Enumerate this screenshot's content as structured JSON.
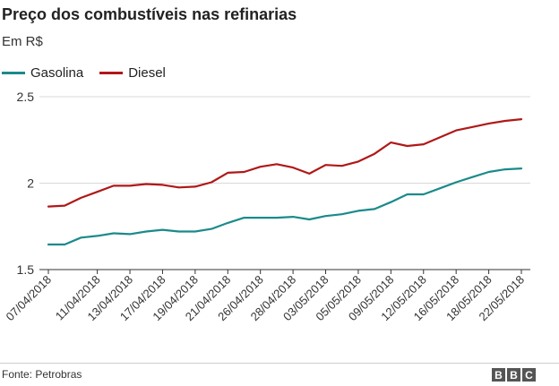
{
  "header": {
    "title": "Preço dos combustíveis nas refinarias",
    "subtitle": "Em R$"
  },
  "footer": {
    "source": "Fonte: Petrobras",
    "logo": [
      "B",
      "B",
      "C"
    ]
  },
  "colors": {
    "gasolina": "#1b8a8a",
    "diesel": "#b01818",
    "grid": "#d9d9d9",
    "axis": "#333333"
  },
  "chart_data": {
    "type": "line",
    "title": "Preço dos combustíveis nas refinarias",
    "ylabel": "Em R$",
    "xlabel": "",
    "ylim": [
      1.5,
      2.5
    ],
    "yticks": [
      1.5,
      2,
      2.5
    ],
    "grid": true,
    "legend": "top-left",
    "x": [
      "07/04/2018",
      "09/04/2018",
      "10/04/2018",
      "11/04/2018",
      "12/04/2018",
      "13/04/2018",
      "14/04/2018",
      "17/04/2018",
      "18/04/2018",
      "19/04/2018",
      "20/04/2018",
      "21/04/2018",
      "24/04/2018",
      "26/04/2018",
      "27/04/2018",
      "28/04/2018",
      "02/05/2018",
      "03/05/2018",
      "04/05/2018",
      "05/05/2018",
      "08/05/2018",
      "09/05/2018",
      "11/05/2018",
      "12/05/2018",
      "15/05/2018",
      "16/05/2018",
      "17/05/2018",
      "18/05/2018",
      "21/05/2018",
      "22/05/2018"
    ],
    "xtick_labels": [
      "07/04/2018",
      "11/04/2018",
      "13/04/2018",
      "17/04/2018",
      "19/04/2018",
      "21/04/2018",
      "26/04/2018",
      "28/04/2018",
      "03/05/2018",
      "05/05/2018",
      "09/05/2018",
      "12/05/2018",
      "16/05/2018",
      "18/05/2018",
      "22/05/2018"
    ],
    "series": [
      {
        "name": "Gasolina",
        "values": [
          1.645,
          1.645,
          1.685,
          1.695,
          1.71,
          1.705,
          1.72,
          1.73,
          1.72,
          1.72,
          1.735,
          1.77,
          1.8,
          1.8,
          1.8,
          1.805,
          1.79,
          1.81,
          1.82,
          1.84,
          1.85,
          1.89,
          1.935,
          1.935,
          1.97,
          2.005,
          2.035,
          2.065,
          2.08,
          2.085
        ]
      },
      {
        "name": "Diesel",
        "values": [
          1.865,
          1.87,
          1.915,
          1.95,
          1.985,
          1.985,
          1.995,
          1.99,
          1.975,
          1.98,
          2.005,
          2.06,
          2.065,
          2.095,
          2.11,
          2.09,
          2.055,
          2.105,
          2.1,
          2.125,
          2.17,
          2.235,
          2.215,
          2.225,
          2.265,
          2.305,
          2.325,
          2.345,
          2.36,
          2.37
        ]
      }
    ]
  }
}
